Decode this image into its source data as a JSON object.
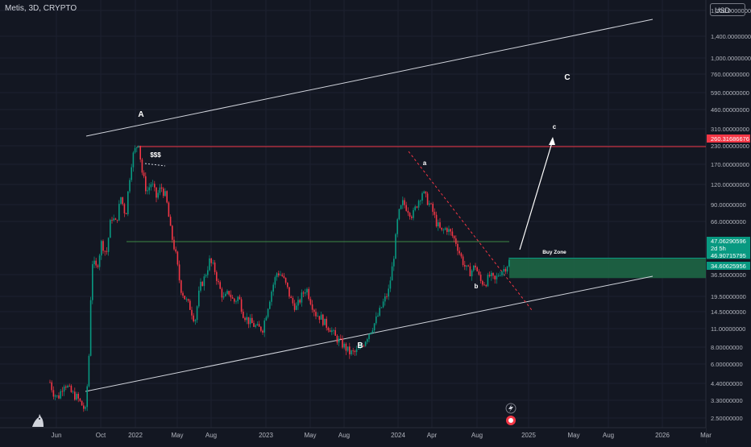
{
  "header": {
    "symbol_line": "Metis, 3D, CRYPTO",
    "currency": "USD"
  },
  "chart_data": {
    "type": "candlestick",
    "y_scale": "log",
    "price_axis_ticks": [
      "1,700.00000000",
      "1,400.00000000",
      "1,000.00000000",
      "760.00000000",
      "590.00000000",
      "460.00000000",
      "310.00000000",
      "230.00000000",
      "170.00000000",
      "120.00000000",
      "90.00000000",
      "66.00000000",
      "36.50000000",
      "19.50000000",
      "14.50000000",
      "11.00000000",
      "8.00000000",
      "6.00000000",
      "4.40000000",
      "3.30000000",
      "2.50000000"
    ],
    "time_axis_ticks": [
      "Jun",
      "Oct",
      "2022",
      "May",
      "Aug",
      "2023",
      "May",
      "Aug",
      "2024",
      "Apr",
      "Aug",
      "2025",
      "May",
      "Aug",
      "2026",
      "Mar"
    ],
    "price_labels": [
      {
        "text": "260.31686676",
        "color": "#f23645"
      },
      {
        "text": "47.06290596",
        "color": "#089981"
      },
      {
        "text": "2d 5h",
        "color": "#089981"
      },
      {
        "text": "46.90715795",
        "color": "#089981"
      },
      {
        "text": "34.60625956",
        "color": "#089981"
      }
    ],
    "annotations": [
      "A",
      "B",
      "C",
      "$$$",
      "a",
      "b",
      "c",
      "Buy Zone"
    ],
    "horizontal_levels": [
      {
        "price": 260.32,
        "color": "#f23645"
      },
      {
        "price": 47.06,
        "color": "#089981"
      },
      {
        "price": 34.61,
        "color": "#089981"
      }
    ],
    "zones": [
      {
        "label": "Buy Zone",
        "from": 34.61,
        "to": 47.06,
        "color": "#1e6b46"
      }
    ],
    "colors": {
      "up": "#089981",
      "down": "#f23645",
      "channel": "#d1d4dc",
      "arrow": "#ffffff"
    }
  }
}
